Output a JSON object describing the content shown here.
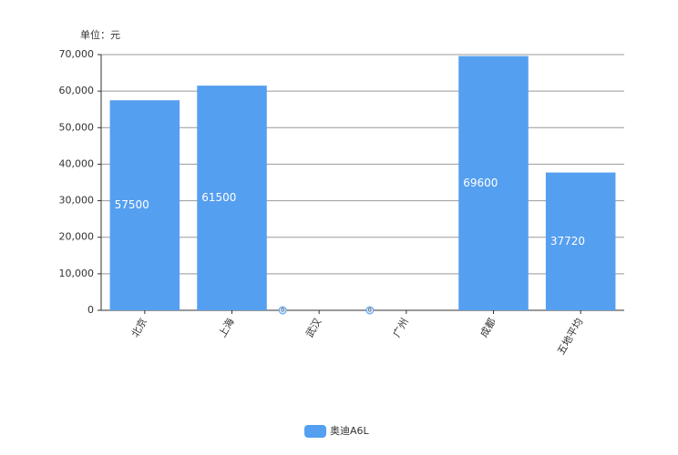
{
  "chart_data": {
    "type": "bar",
    "y_axis_label": "单位：元",
    "categories": [
      "北京",
      "上海",
      "武汉",
      "广州",
      "成都",
      "五地平均"
    ],
    "series": [
      {
        "name": "奥迪A6L",
        "color": "#559ff0",
        "values": [
          57500,
          61500,
          0,
          0,
          69600,
          37720
        ]
      }
    ],
    "ylim": [
      0,
      70000
    ],
    "yticks": [
      0,
      {
        "value": 10000,
        "label": "10,000"
      },
      {
        "value": 20000,
        "label": "20,000"
      },
      {
        "value": 30000,
        "label": "30,000"
      },
      {
        "value": 40000,
        "label": "40,000"
      },
      {
        "value": 50000,
        "label": "50,000"
      },
      {
        "value": 60000,
        "label": "60,000"
      },
      {
        "value": 70000,
        "label": "70,000"
      }
    ],
    "grid": true,
    "legend": "bottom"
  }
}
